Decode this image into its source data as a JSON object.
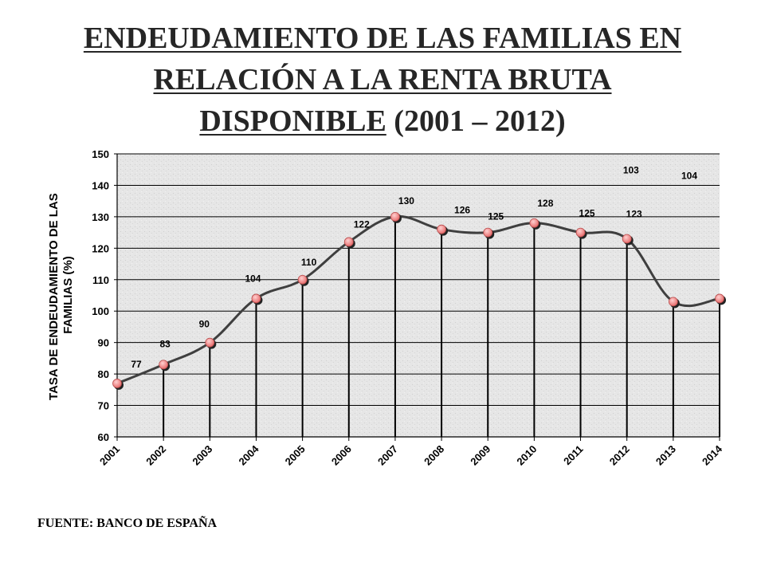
{
  "title": {
    "line1": "ENDEUDAMIENTO DE LAS FAMILIAS EN",
    "line2": "RELACIÓN A LA RENTA BRUTA",
    "line3_underlined": "DISPONIBLE",
    "line3_rest": " (2001 – 2012)"
  },
  "source": "FUENTE: BANCO DE ESPAÑA",
  "chart_data": {
    "type": "line",
    "ylabel_line1": "TASA DE ENDEUDAMIENTO DE LAS",
    "ylabel_line2": "FAMILIAS (%)",
    "xlabel": "",
    "ylim": [
      60,
      150
    ],
    "yticks": [
      60,
      70,
      80,
      90,
      100,
      110,
      120,
      130,
      140,
      150
    ],
    "categories": [
      "2001",
      "2002",
      "2003",
      "2004",
      "2005",
      "2006",
      "2007",
      "2008",
      "2009",
      "2010",
      "2011",
      "2012",
      "2013",
      "2014"
    ],
    "values": [
      77,
      83,
      90,
      104,
      110,
      122,
      130,
      126,
      125,
      128,
      125,
      123,
      103,
      104
    ],
    "data_labels": [
      "77",
      "83",
      "90",
      "104",
      "110",
      "122",
      "130",
      "126",
      "125",
      "128",
      "125",
      "123",
      "103",
      "104"
    ],
    "grid": true,
    "line_color": "#3f3f3f",
    "marker_color": "#f08080",
    "plot_background": "#e6e6e6"
  }
}
